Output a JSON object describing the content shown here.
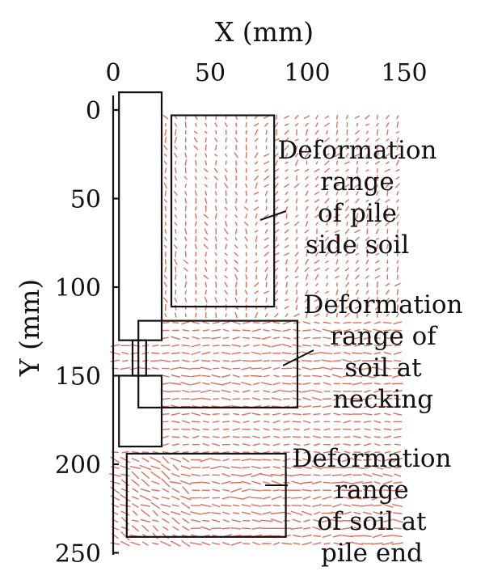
{
  "chart_data": {
    "type": "scatter",
    "title": "",
    "xlabel": "X (mm)",
    "ylabel": "Y (mm)",
    "xlim": [
      0,
      150
    ],
    "ylim": [
      0,
      250
    ],
    "y_inverted": true,
    "x_axis_position": "top",
    "x_ticks": [
      "0",
      "50",
      "100",
      "150"
    ],
    "y_ticks": [
      "0",
      "50",
      "100",
      "150",
      "200",
      "250"
    ],
    "grid": false,
    "legend": "none",
    "vector_color": "#d9553f",
    "outline_color": "#111111",
    "pile": {
      "upper_shaft": {
        "x": [
          3,
          25
        ],
        "y": [
          -10,
          130
        ]
      },
      "necking": {
        "x": [
          10,
          17
        ],
        "y": [
          130,
          150
        ]
      },
      "lower_shaft": {
        "x": [
          3,
          25
        ],
        "y": [
          150,
          190
        ]
      }
    },
    "regions": [
      {
        "label_lines": [
          "Deformation",
          "range",
          "of pile",
          "side soil"
        ],
        "x": [
          30,
          83
        ],
        "y": [
          3,
          111
        ]
      },
      {
        "label_lines": [
          "Deformation",
          "range of",
          "soil at",
          "necking"
        ],
        "x": [
          13,
          95
        ],
        "y": [
          119,
          168
        ]
      },
      {
        "label_lines": [
          "Deformation",
          "range",
          "of soil at",
          "pile end"
        ],
        "x": [
          7,
          89
        ],
        "y": [
          194,
          241
        ]
      }
    ]
  }
}
